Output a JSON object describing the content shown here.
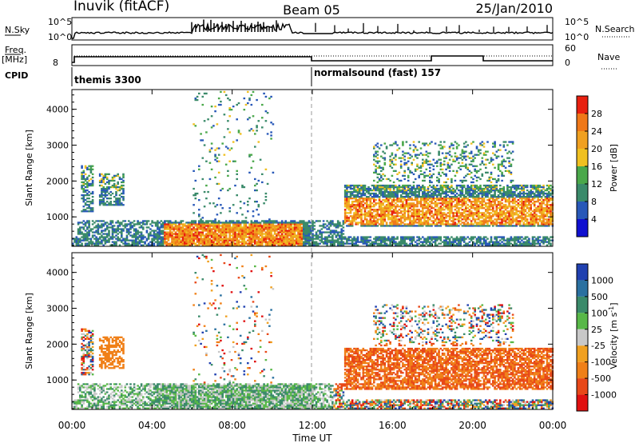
{
  "header": {
    "station": "Inuvik (fitACF)",
    "beam": "Beam 05",
    "date": "25/Jan/2010"
  },
  "strip_labels": {
    "nsky": "N.Sky",
    "nsky_tick_top": "10^5",
    "nsky_tick_bottom": "10^0",
    "nsearch": "N.Search",
    "nsearch_tick_top": "10^5",
    "nsearch_tick_bottom": "10^0",
    "freq": "Freq.",
    "freq_unit": "[MHz]",
    "freq_tick": "8",
    "nave": "Nave",
    "nave_tick_top": "60",
    "nave_tick_bottom": "0",
    "cpid": "CPID"
  },
  "programs": [
    {
      "label": "themis 3300",
      "start_hour": 0
    },
    {
      "label": "normalsound (fast) 157",
      "start_hour": 12
    }
  ],
  "chart_data": [
    {
      "type": "heatmap",
      "name": "power",
      "xlabel": "Time UT",
      "ylabel": "Slant Range [km]",
      "x_ticks": [
        "00:00",
        "04:00",
        "08:00",
        "12:00",
        "16:00",
        "20:00",
        "00:00"
      ],
      "xlim": [
        0,
        24
      ],
      "y_ticks": [
        1000,
        2000,
        3000,
        4000
      ],
      "ylim": [
        180,
        4550
      ],
      "colorbar": {
        "label": "Power [dB]",
        "ticks": [
          4,
          8,
          12,
          16,
          20,
          24,
          28
        ],
        "range": [
          0,
          32
        ],
        "colors": [
          "#1010d0",
          "#2858b8",
          "#3a8a6a",
          "#4aa84a",
          "#f0c020",
          "#f0a020",
          "#f07818",
          "#e82010"
        ]
      }
    },
    {
      "type": "heatmap",
      "name": "velocity",
      "xlabel": "Time UT",
      "ylabel": "Slant Range [km]",
      "x_ticks": [
        "00:00",
        "04:00",
        "08:00",
        "12:00",
        "16:00",
        "20:00",
        "00:00"
      ],
      "xlim": [
        0,
        24
      ],
      "y_ticks": [
        1000,
        2000,
        3000,
        4000
      ],
      "ylim": [
        180,
        4550
      ],
      "colorbar": {
        "label": "Velocity [m s^-1]",
        "ticks": [
          "1000",
          "500",
          "100",
          "25",
          "-25",
          "-100",
          "-500",
          "-1000"
        ],
        "colors": [
          "#2040b0",
          "#2a70a0",
          "#3a8a6a",
          "#58b848",
          "#c8c8c8",
          "#f0a020",
          "#f08018",
          "#e84818",
          "#e01010"
        ]
      }
    }
  ]
}
